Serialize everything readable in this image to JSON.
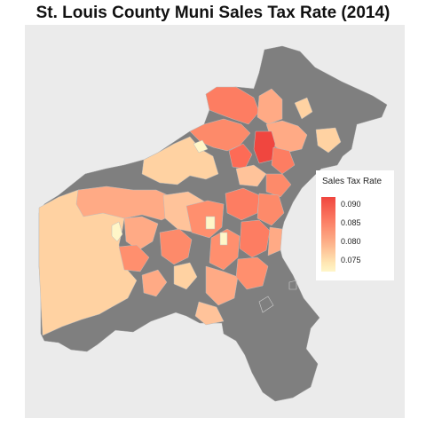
{
  "title": "St. Louis County Muni Sales Tax Rate (2014)",
  "legend": {
    "title": "Sales Tax Rate",
    "breaks": [
      "0.090",
      "0.085",
      "0.080",
      "0.075"
    ]
  },
  "colors": {
    "panel_background": "#ebebeb",
    "unincorporated": "#7f7f7f",
    "low": "#fff6c8",
    "high": "#f0463f"
  }
}
